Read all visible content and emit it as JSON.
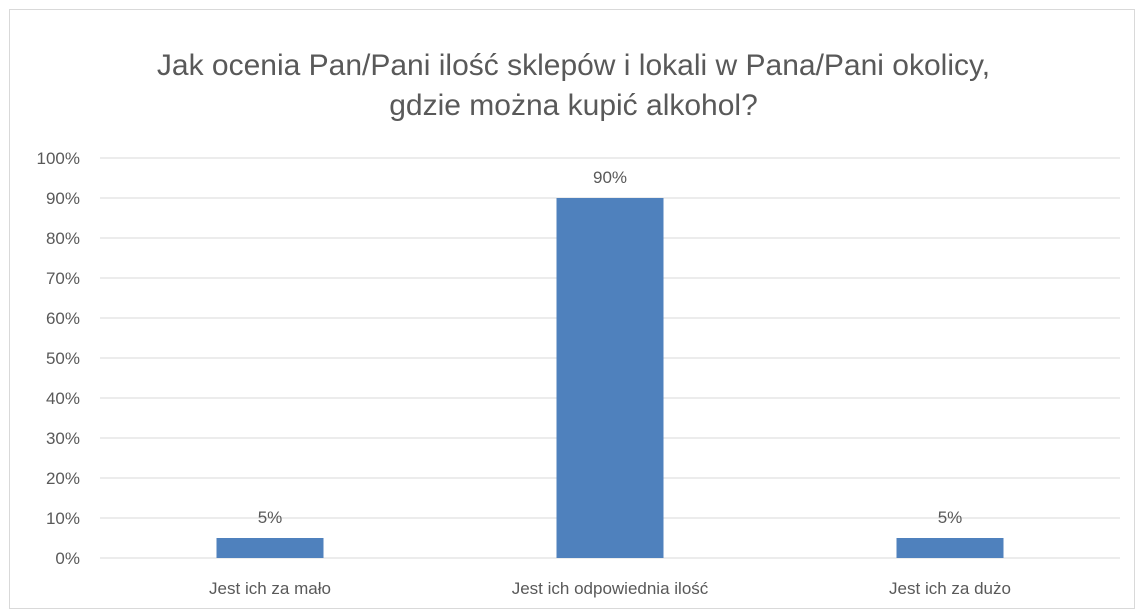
{
  "chart_data": {
    "type": "bar",
    "title": "Jak ocenia Pan/Pani ilość sklepów i lokali w Pana/Pani okolicy, gdzie można kupić alkohol?",
    "categories": [
      "Jest ich za mało",
      "Jest ich odpowiednia ilość",
      "Jest ich za dużo"
    ],
    "values": [
      5,
      90,
      5
    ],
    "data_labels": [
      "5%",
      "90%",
      "5%"
    ],
    "ylim": [
      0,
      100
    ],
    "y_ticks": [
      "0%",
      "10%",
      "20%",
      "30%",
      "40%",
      "50%",
      "60%",
      "70%",
      "80%",
      "90%",
      "100%"
    ],
    "grid": true,
    "legend": "none",
    "bar_color": "#4f81bd",
    "grid_color": "#d9d9d9"
  }
}
